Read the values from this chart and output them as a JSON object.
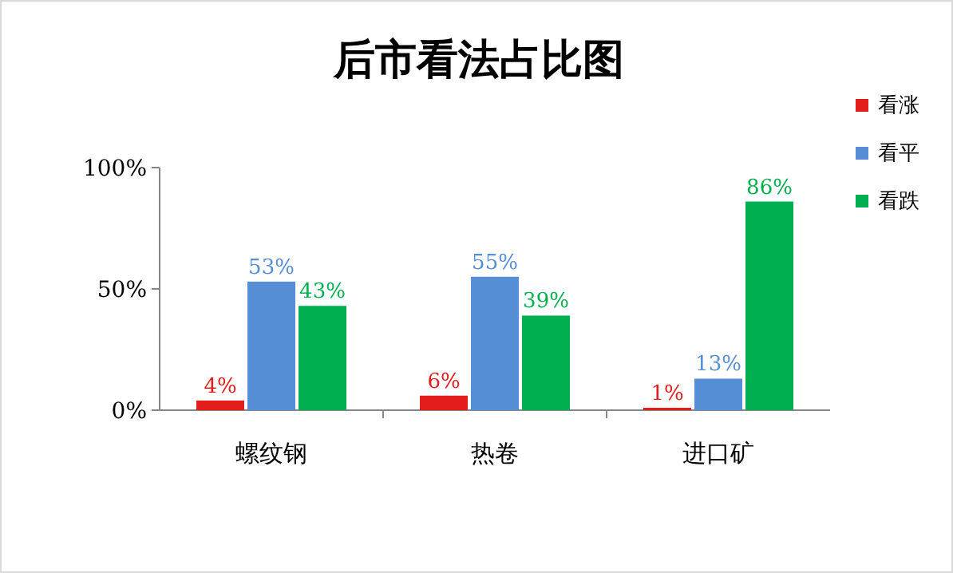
{
  "chart_data": {
    "type": "bar",
    "title": "后市看法占比图",
    "categories": [
      "螺纹钢",
      "热卷",
      "进口矿"
    ],
    "series": [
      {
        "name": "看涨",
        "color": "#e31c1c",
        "values": [
          4,
          6,
          1
        ],
        "value_labels": [
          "4%",
          "6%",
          "1%"
        ]
      },
      {
        "name": "看平",
        "color": "#558ed5",
        "values": [
          53,
          55,
          13
        ],
        "value_labels": [
          "53%",
          "55%",
          "13%"
        ]
      },
      {
        "name": "看跌",
        "color": "#00b050",
        "values": [
          43,
          39,
          86
        ],
        "value_labels": [
          "43%",
          "39%",
          "86%"
        ]
      }
    ],
    "ylim": [
      0,
      100
    ],
    "yticks": [
      {
        "value": 0,
        "label": "0%"
      },
      {
        "value": 50,
        "label": "50%"
      },
      {
        "value": 100,
        "label": "100%"
      }
    ],
    "grid": false,
    "legend": "right"
  }
}
